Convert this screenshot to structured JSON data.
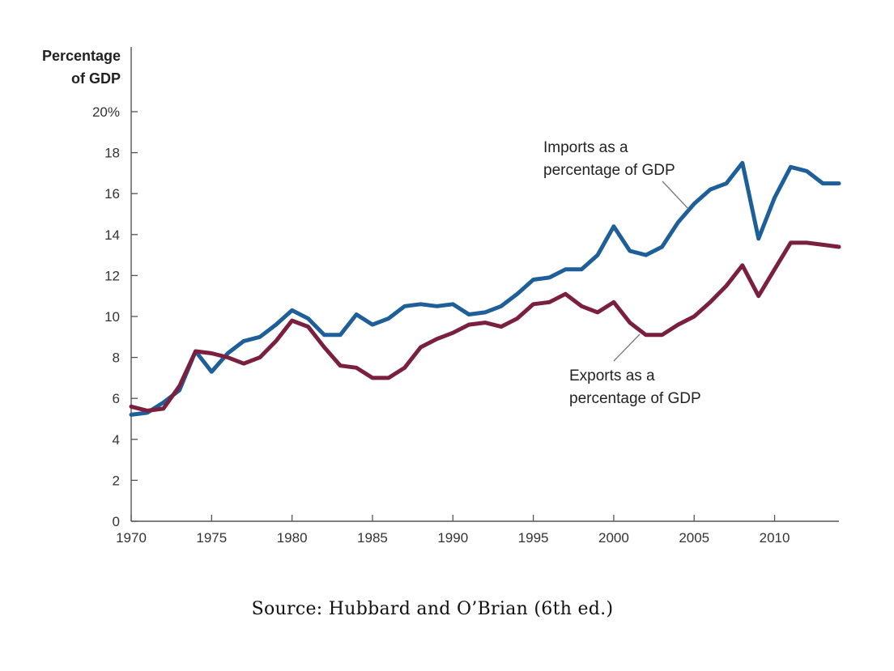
{
  "chart_data": {
    "type": "line",
    "title": "",
    "ylabel_lines": [
      "Percentage",
      "of GDP"
    ],
    "xlabel": "",
    "ylim": [
      0,
      20
    ],
    "xlim": [
      1970,
      2014
    ],
    "y_ticks": [
      0,
      2,
      4,
      6,
      8,
      10,
      12,
      14,
      16,
      18,
      20
    ],
    "y_tick_labels": [
      "0",
      "2",
      "4",
      "6",
      "8",
      "10",
      "12",
      "14",
      "16",
      "18",
      "20%"
    ],
    "x_ticks": [
      1970,
      1975,
      1980,
      1985,
      1990,
      1995,
      2000,
      2005,
      2010
    ],
    "x_tick_labels": [
      "1970",
      "1975",
      "1980",
      "1985",
      "1990",
      "1995",
      "2000",
      "2005",
      "2010"
    ],
    "grid": false,
    "x": [
      1970,
      1971,
      1972,
      1973,
      1974,
      1975,
      1976,
      1977,
      1978,
      1979,
      1980,
      1981,
      1982,
      1983,
      1984,
      1985,
      1986,
      1987,
      1988,
      1989,
      1990,
      1991,
      1992,
      1993,
      1994,
      1995,
      1996,
      1997,
      1998,
      1999,
      2000,
      2001,
      2002,
      2003,
      2004,
      2005,
      2006,
      2007,
      2008,
      2009,
      2010,
      2011,
      2012,
      2013,
      2014
    ],
    "series": [
      {
        "name": "Imports",
        "color": "#1f5f99",
        "values": [
          5.2,
          5.3,
          5.8,
          6.4,
          8.3,
          7.3,
          8.2,
          8.8,
          9.0,
          9.6,
          10.3,
          9.9,
          9.1,
          9.1,
          10.1,
          9.6,
          9.9,
          10.5,
          10.6,
          10.5,
          10.6,
          10.1,
          10.2,
          10.5,
          11.1,
          11.8,
          11.9,
          12.3,
          12.3,
          13.0,
          14.4,
          13.2,
          13.0,
          13.4,
          14.6,
          15.5,
          16.2,
          16.5,
          17.5,
          13.8,
          15.8,
          17.3,
          17.1,
          16.5,
          16.5
        ]
      },
      {
        "name": "Exports",
        "color": "#7a1f3d",
        "values": [
          5.6,
          5.4,
          5.5,
          6.6,
          8.3,
          8.2,
          8.0,
          7.7,
          8.0,
          8.8,
          9.8,
          9.5,
          8.5,
          7.6,
          7.5,
          7.0,
          7.0,
          7.5,
          8.5,
          8.9,
          9.2,
          9.6,
          9.7,
          9.5,
          9.9,
          10.6,
          10.7,
          11.1,
          10.5,
          10.2,
          10.7,
          9.7,
          9.1,
          9.1,
          9.6,
          10.0,
          10.7,
          11.5,
          12.5,
          11.0,
          12.3,
          13.6,
          13.6,
          13.5,
          13.4
        ]
      }
    ],
    "annotations": [
      {
        "series": "Imports",
        "lines": [
          "Imports as a",
          "percentage of GDP"
        ]
      },
      {
        "series": "Exports",
        "lines": [
          "Exports as a",
          "percentage of GDP"
        ]
      }
    ]
  },
  "caption": "Source: Hubbard and O’Brian (6th ed.)"
}
